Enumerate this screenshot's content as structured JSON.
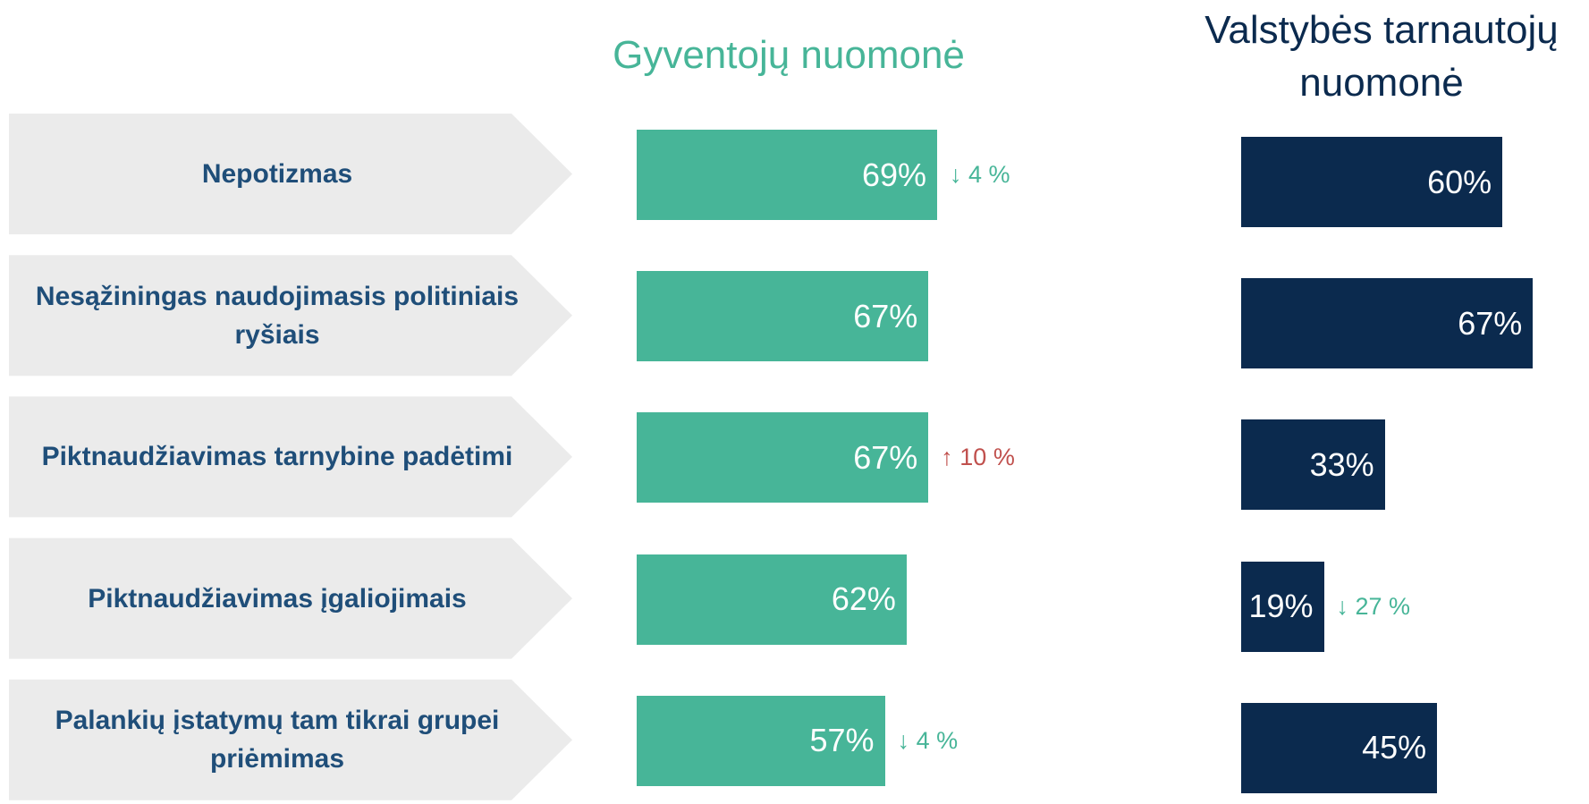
{
  "chart_data": [
    {
      "type": "bar",
      "title": "Gyventojų nuomonė",
      "color": "#47b598",
      "categories": [
        "Nepotizmas",
        "Nesąžiningas naudojimasis politiniais ryšiais",
        "Piktnaudžiavimas tarnybine padėtimi",
        "Piktnaudžiavimas įgaliojimais",
        "Palankių įstatymų tam tikrai grupei priėmimas"
      ],
      "values": [
        69,
        67,
        67,
        62,
        57
      ],
      "value_labels": [
        "69%",
        "67%",
        "67%",
        "62%",
        "57%"
      ],
      "change_labels": [
        "↓ 4 %",
        null,
        "↑ 10 %",
        null,
        "↓ 4 %"
      ],
      "change_colors": [
        "#47b598",
        null,
        "#c0504d",
        null,
        "#47b598"
      ]
    },
    {
      "type": "bar",
      "title": "Valstybės tarnautojų nuomonė",
      "color": "#0b2a4e",
      "values": [
        60,
        67,
        33,
        19,
        45
      ],
      "value_labels": [
        "60%",
        "67%",
        "33%",
        "19%",
        "45%"
      ],
      "change_labels": [
        null,
        null,
        null,
        "↓ 27 %",
        null
      ],
      "change_colors": [
        null,
        null,
        null,
        "#47b598",
        null
      ]
    }
  ]
}
